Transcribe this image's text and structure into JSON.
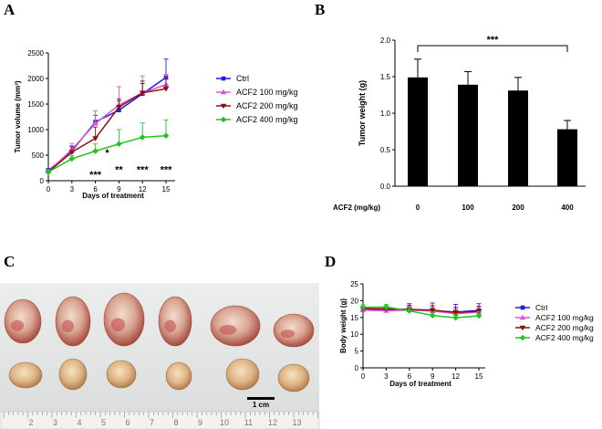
{
  "panels": {
    "a": "A",
    "b": "B",
    "c": "C",
    "d": "D"
  },
  "chart_data": [
    {
      "id": "A",
      "type": "line",
      "title": "",
      "xlabel": "Days of treatment",
      "ylabel": "Tumor volume (mm³)",
      "x": [
        0,
        3,
        6,
        9,
        12,
        15
      ],
      "xticks": [
        "0",
        "3",
        "6",
        "9",
        "12",
        "15"
      ],
      "ylim": [
        0,
        2500
      ],
      "yticks": [
        "0",
        "500",
        "1000",
        "1500",
        "2000",
        "2500"
      ],
      "series": [
        {
          "name": "Ctrl",
          "color": "#1f1fd6",
          "marker": "square",
          "values": [
            200,
            580,
            1150,
            1380,
            1700,
            2020
          ],
          "errors": [
            40,
            100,
            130,
            180,
            200,
            360
          ]
        },
        {
          "name": "ACF2 100 mg/kg",
          "color": "#e055d2",
          "marker": "triangle",
          "values": [
            180,
            610,
            1120,
            1480,
            1720,
            1880
          ],
          "errors": [
            40,
            120,
            250,
            360,
            330,
            200
          ]
        },
        {
          "name": "ACF2 200 mg/kg",
          "color": "#8b1010",
          "marker": "triangle-down",
          "values": [
            170,
            560,
            830,
            1440,
            1720,
            1800
          ],
          "errors": [
            30,
            100,
            220,
            160,
            230,
            200
          ]
        },
        {
          "name": "ACF2 400 mg/kg",
          "color": "#22c422",
          "marker": "diamond",
          "values": [
            170,
            430,
            580,
            720,
            850,
            880
          ],
          "errors": [
            30,
            60,
            140,
            280,
            280,
            310
          ]
        }
      ],
      "annotations": [
        {
          "x": 6,
          "y": 50,
          "text": "***",
          "color": "#000000"
        },
        {
          "x": 7.5,
          "y": 480,
          "text": "*",
          "color": "#000000"
        },
        {
          "x": 9,
          "y": 150,
          "text": "**",
          "color": "#000000"
        },
        {
          "x": 12,
          "y": 150,
          "text": "***",
          "color": "#000000"
        },
        {
          "x": 15,
          "y": 150,
          "text": "***",
          "color": "#000000"
        }
      ]
    },
    {
      "id": "B",
      "type": "bar",
      "title": "",
      "xlabel": "ACF2 (mg/kg)",
      "ylabel": "Tumor weight (g)",
      "categories": [
        "0",
        "100",
        "200",
        "400"
      ],
      "values": [
        1.49,
        1.39,
        1.31,
        0.78
      ],
      "errors": [
        0.25,
        0.18,
        0.18,
        0.12
      ],
      "ylim": [
        0,
        2.0
      ],
      "yticks": [
        "0.0",
        "0.5",
        "1.0",
        "1.5",
        "2.0"
      ],
      "bar_color": "#000000",
      "significance": {
        "from": "0",
        "to": "400",
        "text": "***"
      }
    },
    {
      "id": "D",
      "type": "line",
      "title": "",
      "xlabel": "Days of treatment",
      "ylabel": "Body weight (g)",
      "x": [
        0,
        3,
        6,
        9,
        12,
        15
      ],
      "xticks": [
        "0",
        "3",
        "6",
        "9",
        "12",
        "15"
      ],
      "ylim": [
        0,
        25
      ],
      "yticks": [
        "0",
        "5",
        "10",
        "15",
        "20",
        "25"
      ],
      "series": [
        {
          "name": "Ctrl",
          "color": "#1f1fd6",
          "marker": "square",
          "values": [
            17.5,
            17.4,
            17.3,
            17.0,
            16.6,
            17.1
          ],
          "errors": [
            0.8,
            1.0,
            1.8,
            2.3,
            2.3,
            2.0
          ]
        },
        {
          "name": "ACF2 100 mg/kg",
          "color": "#e055d2",
          "marker": "triangle",
          "values": [
            17.2,
            17.0,
            17.2,
            16.9,
            16.1,
            16.6
          ],
          "errors": [
            0.7,
            0.8,
            1.2,
            1.5,
            1.5,
            1.5
          ]
        },
        {
          "name": "ACF2 200 mg/kg",
          "color": "#8b1010",
          "marker": "triangle-down",
          "values": [
            17.6,
            17.6,
            17.4,
            17.2,
            16.5,
            16.8
          ],
          "errors": [
            0.6,
            0.8,
            1.2,
            1.3,
            1.5,
            1.5
          ]
        },
        {
          "name": "ACF2 400 mg/kg",
          "color": "#22c422",
          "marker": "diamond",
          "values": [
            18.0,
            18.1,
            17.0,
            15.6,
            14.9,
            15.5
          ],
          "errors": [
            0.8,
            0.8,
            1.0,
            1.0,
            1.0,
            1.2
          ]
        }
      ]
    }
  ],
  "photo": {
    "scale_bar_label": "1 cm",
    "ruler_numbers": [
      "2",
      "3",
      "4",
      "5",
      "6",
      "7",
      "8",
      "9",
      "10",
      "11",
      "12",
      "13"
    ],
    "tumor_count_top": 6,
    "tumor_count_bottom": 6
  }
}
